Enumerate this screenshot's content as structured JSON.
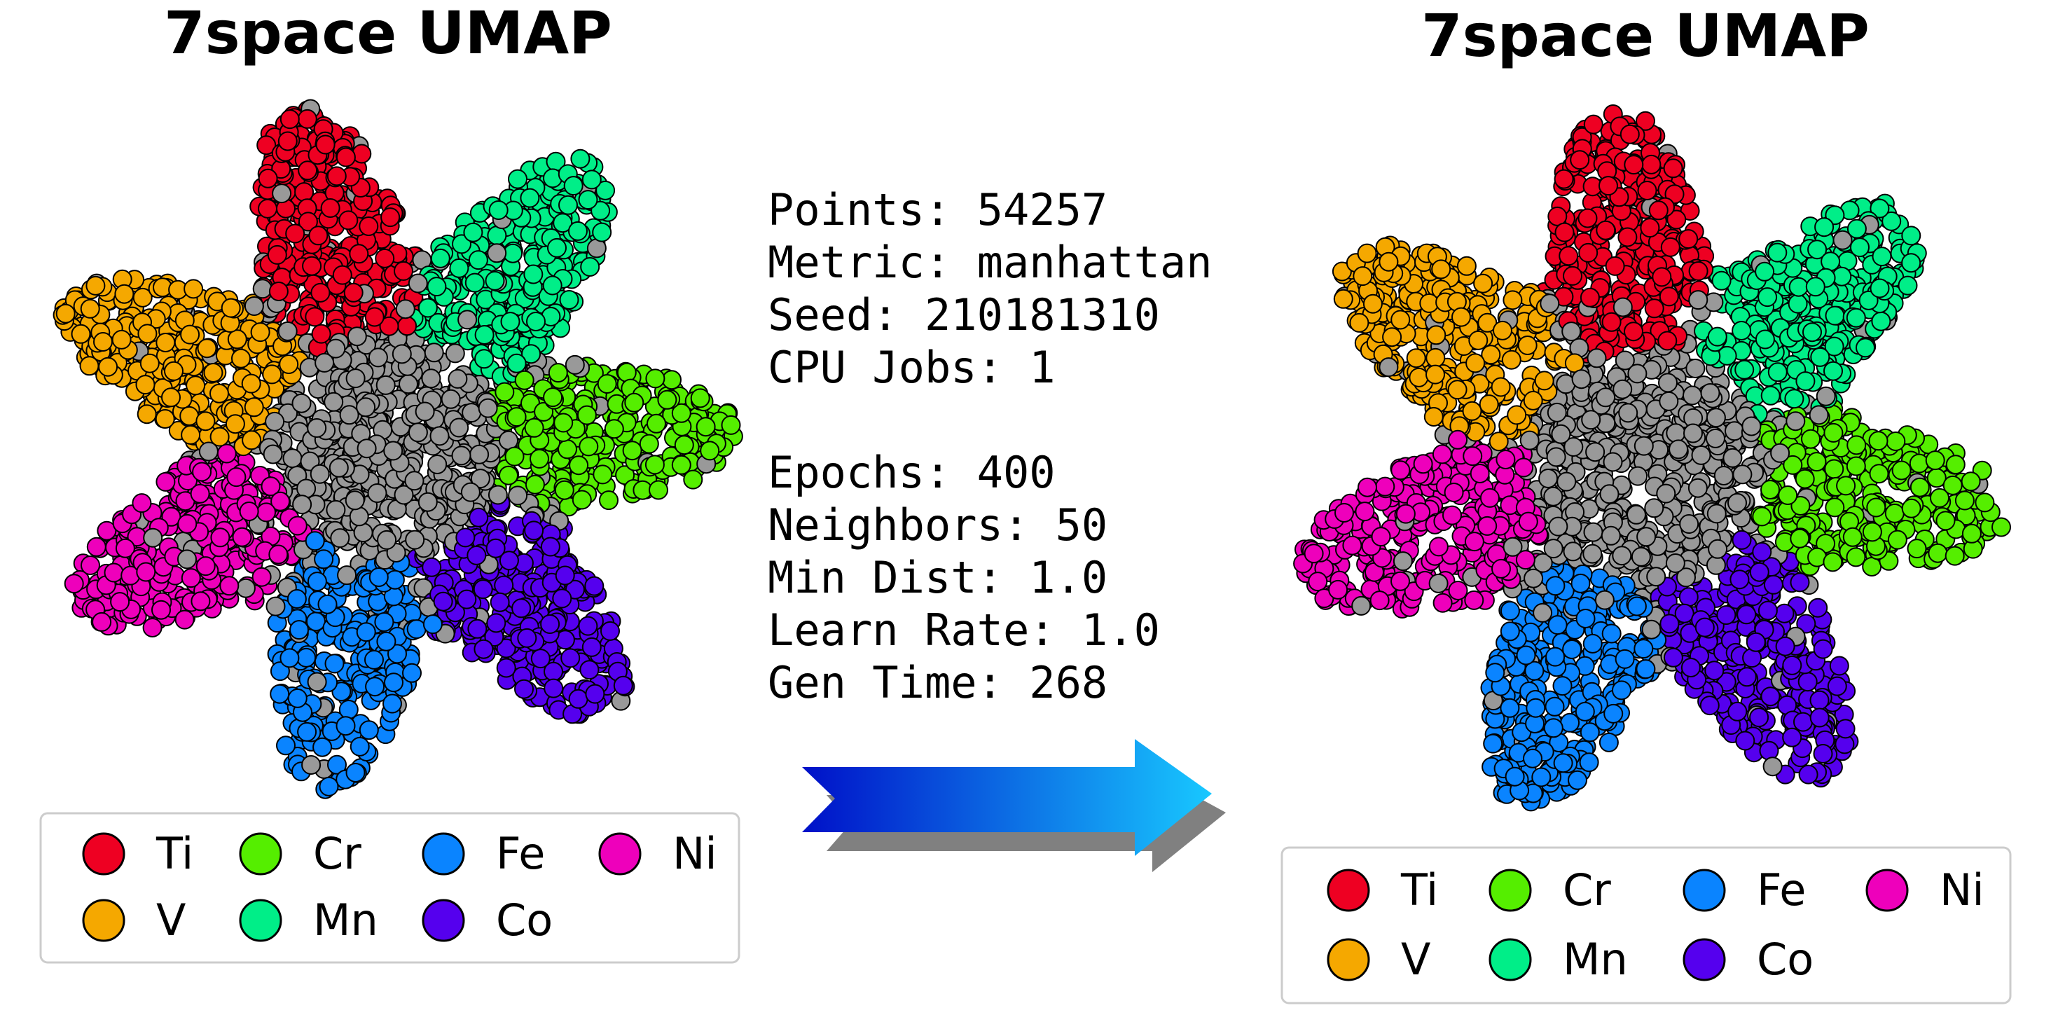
{
  "left_panel": {
    "title": "7space UMAP",
    "legend": [
      {
        "label": "Ti",
        "color": "#ee0022"
      },
      {
        "label": "V",
        "color": "#f5a800"
      },
      {
        "label": "Cr",
        "color": "#55ee00"
      },
      {
        "label": "Mn",
        "color": "#00ee88"
      },
      {
        "label": "Fe",
        "color": "#0a84ff"
      },
      {
        "label": "Co",
        "color": "#5500ee"
      },
      {
        "label": "Ni",
        "color": "#ee00bb"
      }
    ]
  },
  "right_panel": {
    "title": "7space UMAP",
    "legend": [
      {
        "label": "Ti",
        "color": "#ee0022"
      },
      {
        "label": "V",
        "color": "#f5a800"
      },
      {
        "label": "Cr",
        "color": "#55ee00"
      },
      {
        "label": "Mn",
        "color": "#00ee88"
      },
      {
        "label": "Fe",
        "color": "#0a84ff"
      },
      {
        "label": "Co",
        "color": "#5500ee"
      },
      {
        "label": "Ni",
        "color": "#ee00bb"
      }
    ]
  },
  "info": {
    "run": [
      "Points: 54257",
      "Metric: manhattan",
      "Seed: 210181310",
      "CPU Jobs: 1"
    ],
    "params": [
      "Epochs: 400",
      "Neighbors: 50",
      "Min Dist: 1.0",
      "Learn Rate: 1.0",
      "Gen Time: 268"
    ]
  }
}
